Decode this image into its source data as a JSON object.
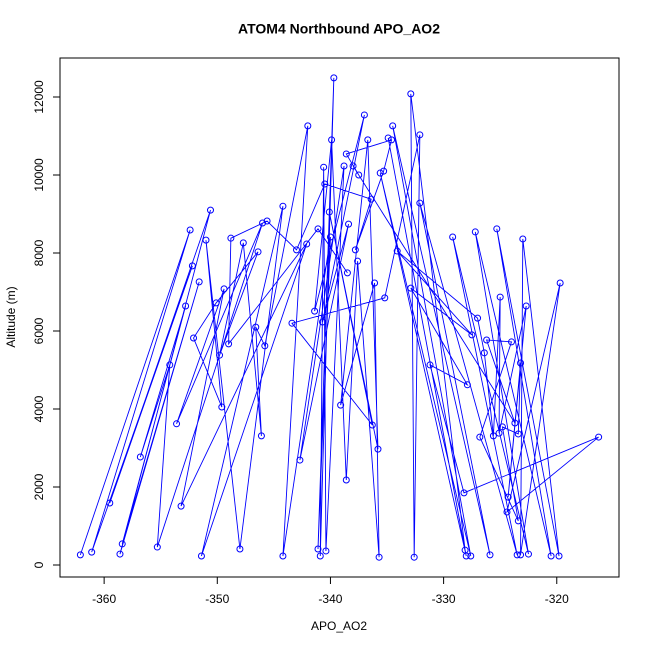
{
  "chart_data": {
    "type": "line",
    "title": "ATOM4 Northbound APO_AO2",
    "xlabel": "APO_AO2",
    "ylabel": "Altitude (m)",
    "color": "#0000ff",
    "markers": true,
    "x": [
      -362.1,
      -352.4,
      -361.1,
      -352.2,
      -359.5,
      -350.6,
      -358.6,
      -351.6,
      -358.4,
      -352.8,
      -356.8,
      -354.2,
      -355.3,
      -346.0,
      -353.6,
      -349.4,
      -353.2,
      -342.1,
      -351.4,
      -344.2,
      -348.0,
      -351.0,
      -349.6,
      -352.1,
      -350.1,
      -346.4,
      -349.8,
      -347.7,
      -346.1,
      -346.6,
      -345.8,
      -342.0,
      -344.2,
      -340.0,
      -341.1,
      -339.7,
      -340.9,
      -340.6,
      -340.4,
      -338.8,
      -342.7,
      -338.4,
      -340.7,
      -337.0,
      -341.4,
      -339.9,
      -338.6,
      -337.6,
      -335.7,
      -336.1,
      -339.1,
      -336.7,
      -335.8,
      -340.1,
      -336.3,
      -343.4,
      -335.2,
      -332.1,
      -332.6,
      -332.9,
      -328.1,
      -334.9,
      -328.0,
      -335.6,
      -327.6,
      -334.5,
      -325.9,
      -332.1,
      -323.5,
      -329.2,
      -322.5,
      -327.2,
      -320.5,
      -325.3,
      -319.8,
      -323.0,
      -323.2,
      -319.7,
      -324.4,
      -316.3,
      -328.2,
      -331.2,
      -327.9,
      -332.9,
      -327.5,
      -334.1,
      -327.0,
      -326.4,
      -325.6,
      -325.0,
      -325.1,
      -322.7,
      -324.3,
      -323.2,
      -323.4,
      -324.8,
      -323.4,
      -326.8,
      -324.0,
      -326.2,
      -323.7,
      -338.0,
      -337.5,
      -338.6,
      -334.6,
      -335.3,
      -337.8,
      -336.4,
      -340.5,
      -343.0,
      -345.6,
      -348.8,
      -349.0,
      -341.1,
      -338.5
    ],
    "values": [
      260,
      8590,
      330,
      7670,
      1590,
      9100,
      280,
      7260,
      540,
      6640,
      2770,
      5130,
      460,
      8770,
      3620,
      7080,
      1510,
      8230,
      230,
      9200,
      410,
      8330,
      4050,
      5820,
      6720,
      8030,
      5380,
      8260,
      3310,
      6100,
      5620,
      11260,
      230,
      8410,
      410,
      12490,
      230,
      10200,
      360,
      10230,
      2690,
      8740,
      6230,
      11540,
      6510,
      10900,
      2180,
      7790,
      200,
      7230,
      4100,
      10900,
      2970,
      9050,
      3590,
      6200,
      6850,
      11030,
      200,
      12080,
      380,
      10950,
      230,
      10050,
      230,
      11260,
      260,
      9280,
      260,
      8410,
      280,
      8540,
      230,
      8620,
      230,
      8360,
      260,
      7230,
      1360,
      3280,
      1850,
      5130,
      4620,
      7100,
      5900,
      8050,
      6330,
      5440,
      3310,
      6870,
      3380,
      6640,
      1740,
      5180,
      3360,
      3540,
      1130,
      3280,
      5720,
      5770,
      3640,
      10230,
      10000,
      10540,
      10900,
      10100,
      8080,
      9380,
      9770,
      8080,
      8820,
      8380,
      5670,
      8620,
      7490
    ],
    "xlim": [
      -363.9,
      -314.5
    ],
    "ylim": [
      -308,
      13000
    ],
    "xticks": [
      -360,
      -350,
      -340,
      -330,
      -320
    ],
    "yticks": [
      0,
      2000,
      4000,
      6000,
      8000,
      10000,
      12000
    ]
  }
}
